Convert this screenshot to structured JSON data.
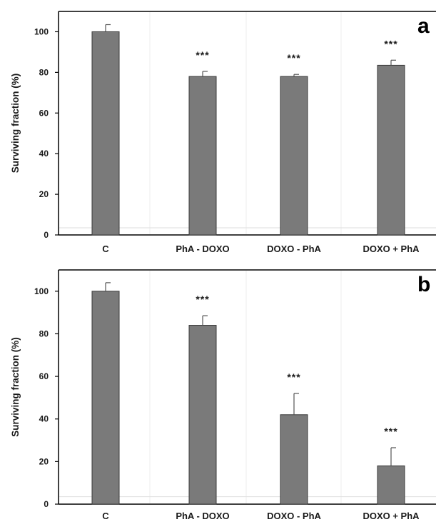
{
  "chart_data": [
    {
      "type": "bar",
      "panel_label": "a",
      "ylabel": "Surviving fraction (%)",
      "ylim": [
        0,
        110
      ],
      "yticks": [
        0,
        20,
        40,
        60,
        80,
        100
      ],
      "grid": true,
      "categories": [
        "C",
        "PhA - DOXO",
        "DOXO - PhA",
        "DOXO + PhA"
      ],
      "values": [
        100,
        78,
        78,
        83.5
      ],
      "errors": [
        3.5,
        2.5,
        1,
        2.5
      ],
      "significance": [
        "",
        "***",
        "***",
        "***"
      ],
      "bar_color": "#7a7a7a"
    },
    {
      "type": "bar",
      "panel_label": "b",
      "ylabel": "Surviving fraction (%)",
      "ylim": [
        0,
        110
      ],
      "yticks": [
        0,
        20,
        40,
        60,
        80,
        100
      ],
      "grid": true,
      "categories": [
        "C",
        "PhA - DOXO",
        "DOXO - PhA",
        "DOXO + PhA"
      ],
      "values": [
        100,
        84,
        42,
        18
      ],
      "errors": [
        4,
        4.5,
        10,
        8.5
      ],
      "significance": [
        "",
        "***",
        "***",
        "***"
      ],
      "bar_color": "#7a7a7a"
    }
  ]
}
